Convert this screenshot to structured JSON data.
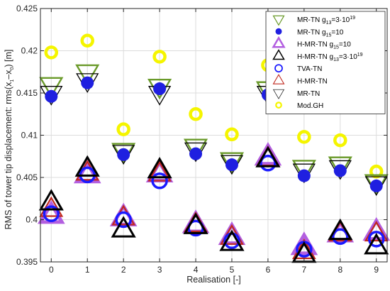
{
  "chart_data": {
    "type": "scatter",
    "xlabel": "Realisation [-]",
    "ylabel": "RMS of tower tip displacement: rms(x",
    "ylabel_sub1": "1",
    "ylabel_mid": "–x",
    "ylabel_sub2": "0",
    "ylabel_end": ") [m]",
    "xlim": [
      -0.3,
      9.3
    ],
    "ylim": [
      0.395,
      0.425
    ],
    "xticks": [
      "0",
      "1",
      "2",
      "3",
      "4",
      "5",
      "6",
      "7",
      "8",
      "9"
    ],
    "xtick_values": [
      0,
      1,
      2,
      3,
      4,
      5,
      6,
      7,
      8,
      9
    ],
    "yticks": [
      "0.395",
      "0.4",
      "0.405",
      "0.41",
      "0.415",
      "0.42",
      "0.425"
    ],
    "ytick_values": [
      0.395,
      0.4,
      0.405,
      0.41,
      0.415,
      0.42,
      0.425
    ],
    "grid": true,
    "legend_position": "top-right",
    "series": [
      {
        "name": "Mod.GH",
        "marker": "circle-ring-yellow",
        "color": "#f5f500",
        "values": [
          0.4198,
          0.4212,
          0.4107,
          0.4193,
          0.4125,
          0.4101,
          0.4183,
          0.4098,
          0.4094,
          0.4057
        ]
      },
      {
        "name": "MR-TN",
        "marker": "triangle-down-open",
        "color": "#000000",
        "values": [
          0.415,
          0.4165,
          0.408,
          0.415,
          0.4083,
          0.4068,
          0.415,
          0.4058,
          0.4062,
          0.4043
        ]
      },
      {
        "name_main": "MR-TN g",
        "name_sub": "13",
        "name_end": "=3·10",
        "name_sup": "19",
        "marker": "triangle-down-open",
        "color": "#6a9a2a",
        "values": [
          0.416,
          0.4175,
          0.4082,
          0.4158,
          0.4087,
          0.4071,
          0.4155,
          0.4062,
          0.4066,
          0.4045
        ]
      },
      {
        "name_main": "MR-TN g",
        "name_sub": "15",
        "name_end": "=10",
        "marker": "filled-circle",
        "color": "#1f1fe0",
        "values": [
          0.4146,
          0.4162,
          0.4077,
          0.4155,
          0.4078,
          0.4065,
          0.4148,
          0.4052,
          0.4058,
          0.404
        ]
      },
      {
        "name": "TVA-TN",
        "marker": "circle-ring-blue",
        "color": "#1a1aff",
        "values": [
          0.4007,
          0.4053,
          0.4,
          0.4046,
          0.399,
          0.3975,
          0.4067,
          0.3965,
          0.398,
          0.3977
        ]
      },
      {
        "name_main": "H-MR-TN g",
        "name_sub": "15",
        "name_end": "=10",
        "marker": "triangle-up-open",
        "color": "#b35fe0",
        "values": [
          0.4005,
          0.4053,
          0.4002,
          0.4054,
          0.3994,
          0.398,
          0.4074,
          0.3968,
          0.3983,
          0.3985
        ]
      },
      {
        "name": "H-MR-TN",
        "marker": "triangle-up-open",
        "color": "#c0281e",
        "values": [
          0.4012,
          0.4055,
          0.4002,
          0.4054,
          0.3994,
          0.3979,
          0.4072,
          0.3962,
          0.3983,
          0.3983
        ]
      },
      {
        "name_main": "H-MR-TN g",
        "name_sub": "13",
        "name_end": "=3·10",
        "name_sup": "19",
        "marker": "triangle-up-open",
        "color": "#000000",
        "values": [
          0.402,
          0.406,
          0.3988,
          0.4058,
          0.3992,
          0.3972,
          0.4071,
          0.3958,
          0.3985,
          0.3968
        ]
      }
    ],
    "legend_order": [
      2,
      3,
      5,
      7,
      4,
      6,
      1,
      0
    ]
  }
}
